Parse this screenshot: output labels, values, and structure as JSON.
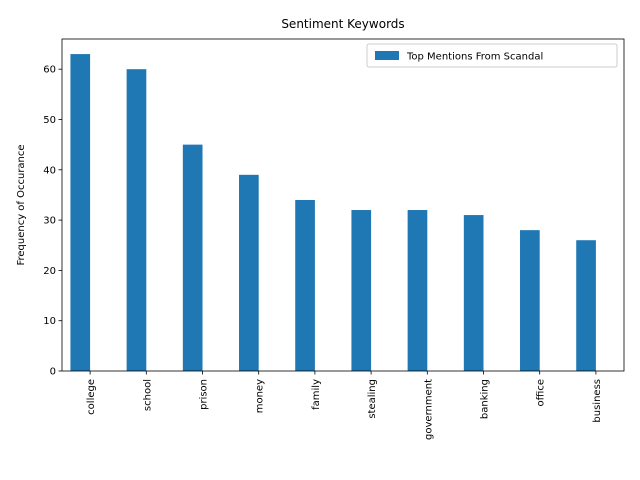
{
  "chart_data": {
    "type": "bar",
    "title": "Sentiment Keywords",
    "xlabel": "",
    "ylabel": "Frequency of Occurance",
    "ylim": [
      0,
      66
    ],
    "yticks": [
      0,
      10,
      20,
      30,
      40,
      50,
      60
    ],
    "grid": false,
    "legend_position": "top-right",
    "categories": [
      "college",
      "school",
      "prison",
      "money",
      "family",
      "stealing",
      "government",
      "banking",
      "office",
      "business"
    ],
    "series": [
      {
        "name": "Top Mentions From Scandal",
        "color": "#1f77b4",
        "values": [
          63,
          60,
          45,
          39,
          34,
          32,
          32,
          31,
          28,
          26
        ]
      }
    ]
  }
}
